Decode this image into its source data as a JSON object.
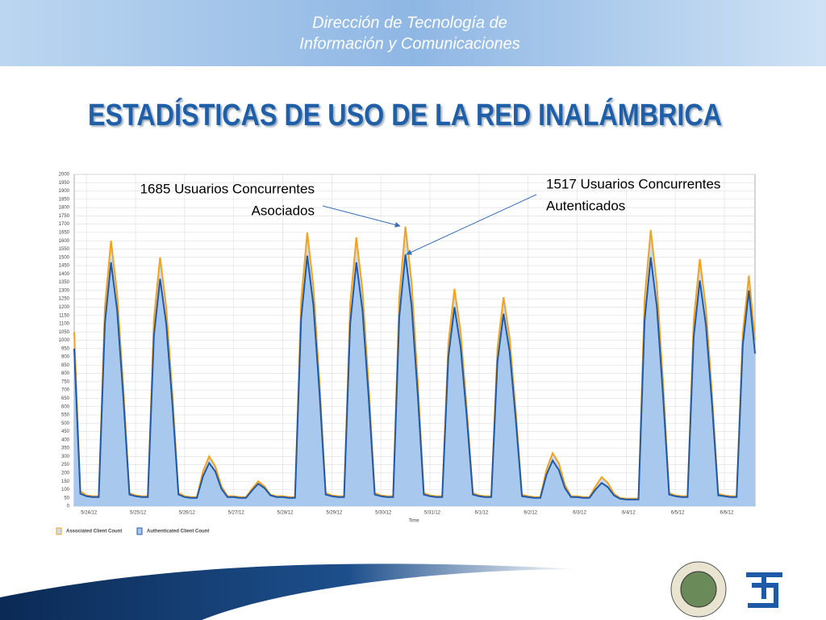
{
  "header": {
    "lines": [
      "Dirección de Tecnología de",
      "Información y Comunicaciones"
    ]
  },
  "chart_data": {
    "type": "area",
    "title": "ESTADÍSTICAS DE USO DE LA RED INALÁMBRICA",
    "x_label": "Time",
    "categories": [
      null,
      null,
      "5/24/12",
      null,
      null,
      null,
      null,
      null,
      null,
      null,
      "5/25/12",
      null,
      null,
      null,
      null,
      null,
      null,
      null,
      "5/26/12",
      null,
      null,
      null,
      null,
      null,
      null,
      null,
      "5/27/12",
      null,
      null,
      null,
      null,
      null,
      null,
      null,
      "5/28/12",
      null,
      null,
      null,
      null,
      null,
      null,
      null,
      "5/29/12",
      null,
      null,
      null,
      null,
      null,
      null,
      null,
      "5/30/12",
      null,
      null,
      null,
      null,
      null,
      null,
      null,
      "5/31/12",
      null,
      null,
      null,
      null,
      null,
      null,
      null,
      "6/1/12",
      null,
      null,
      null,
      null,
      null,
      null,
      null,
      "6/2/12",
      null,
      null,
      null,
      null,
      null,
      null,
      null,
      "6/3/12",
      null,
      null,
      null,
      null,
      null,
      null,
      null,
      "6/4/12",
      null,
      null,
      null,
      null,
      null,
      null,
      null,
      "6/5/12",
      null,
      null,
      null,
      null,
      null,
      null,
      null,
      "6/6/12",
      null,
      null,
      null,
      null,
      null
    ],
    "series": [
      {
        "name": "Associated Client Count",
        "color": "#f5a21b",
        "fill": "#c9dcf3",
        "values": [
          1050,
          90,
          65,
          60,
          60,
          1200,
          1600,
          1280,
          720,
          80,
          65,
          60,
          60,
          1130,
          1500,
          1200,
          680,
          80,
          60,
          55,
          55,
          210,
          300,
          240,
          120,
          60,
          60,
          55,
          55,
          105,
          150,
          120,
          70,
          60,
          60,
          55,
          55,
          1240,
          1650,
          1320,
          740,
          80,
          65,
          60,
          60,
          1220,
          1620,
          1300,
          730,
          80,
          65,
          60,
          60,
          1260,
          1685,
          1350,
          760,
          80,
          65,
          60,
          60,
          980,
          1310,
          1050,
          590,
          80,
          65,
          60,
          60,
          950,
          1260,
          1010,
          570,
          70,
          60,
          55,
          55,
          220,
          320,
          260,
          130,
          60,
          60,
          55,
          55,
          120,
          175,
          140,
          75,
          50,
          45,
          45,
          45,
          1250,
          1665,
          1330,
          750,
          80,
          65,
          60,
          60,
          1120,
          1490,
          1190,
          670,
          75,
          65,
          60,
          60,
          1040,
          1390,
          1000
        ]
      },
      {
        "name": "Authenticated Client Count",
        "color": "#1f5aa8",
        "fill": "#a9c8ee",
        "values": [
          950,
          75,
          60,
          55,
          55,
          1100,
          1470,
          1180,
          660,
          70,
          60,
          55,
          55,
          1030,
          1370,
          1100,
          620,
          70,
          55,
          50,
          50,
          180,
          260,
          210,
          105,
          55,
          55,
          50,
          50,
          95,
          135,
          110,
          65,
          55,
          55,
          50,
          50,
          1130,
          1510,
          1210,
          680,
          70,
          60,
          55,
          55,
          1100,
          1470,
          1180,
          660,
          70,
          60,
          55,
          55,
          1140,
          1517,
          1210,
          680,
          70,
          60,
          55,
          55,
          900,
          1200,
          960,
          540,
          70,
          60,
          55,
          55,
          870,
          1160,
          930,
          520,
          60,
          55,
          50,
          50,
          190,
          275,
          220,
          110,
          55,
          55,
          50,
          50,
          100,
          140,
          115,
          65,
          45,
          40,
          40,
          40,
          1120,
          1500,
          1200,
          670,
          70,
          60,
          55,
          55,
          1020,
          1360,
          1090,
          610,
          65,
          60,
          55,
          55,
          970,
          1300,
          920
        ]
      }
    ],
    "ylim": [
      0,
      2000
    ],
    "yticks": [
      0,
      50,
      100,
      150,
      200,
      250,
      300,
      350,
      400,
      450,
      500,
      550,
      600,
      650,
      700,
      750,
      800,
      850,
      900,
      950,
      1000,
      1050,
      1100,
      1150,
      1200,
      1250,
      1300,
      1350,
      1400,
      1450,
      1500,
      1550,
      1600,
      1650,
      1700,
      1750,
      1800,
      1850,
      1900,
      1950,
      2000
    ],
    "grid": true,
    "annotations": [
      {
        "lines": [
          "1685 Usuarios Concurrentes",
          "Asociados"
        ]
      },
      {
        "lines": [
          "1517 Usuarios Concurrentes",
          "Autenticados"
        ]
      }
    ]
  }
}
